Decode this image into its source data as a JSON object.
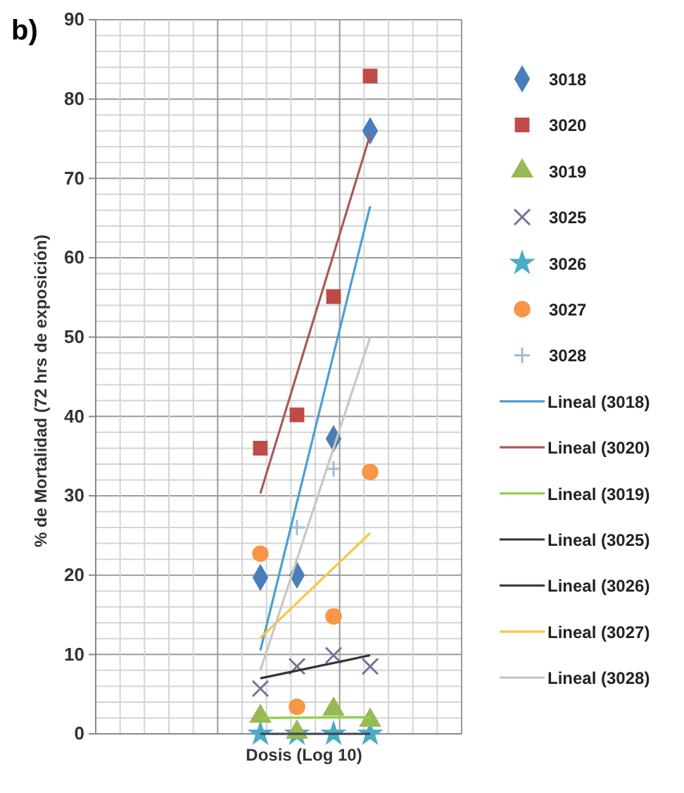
{
  "chart_data": {
    "type": "scatter",
    "title": "b)",
    "xlabel": "Dosis (Log 10)",
    "ylabel": "% de Mortalidad  (72 hrs de exposición)",
    "categories": [
      null,
      null,
      null,
      null,
      null,
      null,
      null,
      null,
      null,
      null
    ],
    "ylim": [
      0,
      90
    ],
    "yticks": [
      0,
      10,
      20,
      30,
      40,
      50,
      60,
      70,
      80,
      90
    ],
    "grid": true,
    "legend": "right",
    "tick_labels": "y",
    "series": [
      {
        "name": "3018",
        "color": "#4a7ebb",
        "marker": "diamond",
        "values": [
          null,
          null,
          null,
          null,
          19.7,
          20,
          37.2,
          76,
          null,
          null
        ]
      },
      {
        "name": "3020",
        "color": "#be4b48",
        "marker": "square",
        "values": [
          null,
          null,
          null,
          null,
          36,
          40.2,
          55.1,
          82.9,
          null,
          null
        ]
      },
      {
        "name": "3019",
        "color": "#98b954",
        "marker": "triangle",
        "values": [
          null,
          null,
          null,
          null,
          2.2,
          0.2,
          3.1,
          1.7,
          null,
          null
        ]
      },
      {
        "name": "3025",
        "color": "#7a6f98",
        "marker": "cross",
        "values": [
          null,
          null,
          null,
          null,
          5.7,
          8.5,
          9.9,
          8.5,
          null,
          null
        ]
      },
      {
        "name": "3026",
        "color": "#4bacc6",
        "marker": "star",
        "values": [
          null,
          null,
          null,
          null,
          0,
          0,
          0,
          0,
          null,
          null
        ]
      },
      {
        "name": "3027",
        "color": "#f79646",
        "marker": "circle",
        "values": [
          null,
          null,
          null,
          null,
          22.7,
          3.4,
          14.8,
          33,
          null,
          null
        ]
      },
      {
        "name": "3028",
        "color": "#a5b9d8",
        "marker": "plus",
        "values": [
          null,
          null,
          null,
          null,
          null,
          26,
          33.4,
          null,
          null,
          null
        ]
      },
      {
        "name": "Lineal (3018)",
        "type": "line",
        "marker": "none",
        "color": "#4a9fd0",
        "values": [
          null,
          null,
          null,
          null,
          10.5,
          null,
          null,
          66.5,
          null,
          null
        ]
      },
      {
        "name": "Lineal (3020)",
        "type": "line",
        "marker": "none",
        "color": "#a85a58",
        "values": [
          null,
          null,
          null,
          null,
          30.3,
          null,
          null,
          75.5,
          null,
          null
        ]
      },
      {
        "name": "Lineal (3019)",
        "type": "line",
        "marker": "none",
        "color": "#92d050",
        "values": [
          null,
          null,
          null,
          null,
          2,
          null,
          null,
          2.1,
          null,
          null
        ]
      },
      {
        "name": "Lineal (3025)",
        "type": "line",
        "marker": "none",
        "color": "#333333",
        "values": [
          null,
          null,
          null,
          null,
          7,
          null,
          null,
          9.9,
          null,
          null
        ]
      },
      {
        "name": "Lineal (3026)",
        "type": "line",
        "marker": "none",
        "color": "#404050",
        "values": [
          null,
          null,
          null,
          null,
          0,
          null,
          null,
          0,
          null,
          null
        ]
      },
      {
        "name": "Lineal (3027)",
        "type": "line",
        "marker": "none",
        "color": "#f5c842",
        "values": [
          null,
          null,
          null,
          null,
          12.1,
          null,
          null,
          25.3,
          null,
          null
        ]
      },
      {
        "name": "Lineal (3028)",
        "type": "line",
        "marker": "none",
        "color": "#c8c8bc",
        "values": [
          null,
          null,
          null,
          null,
          8,
          null,
          null,
          50,
          null,
          null
        ]
      }
    ]
  }
}
